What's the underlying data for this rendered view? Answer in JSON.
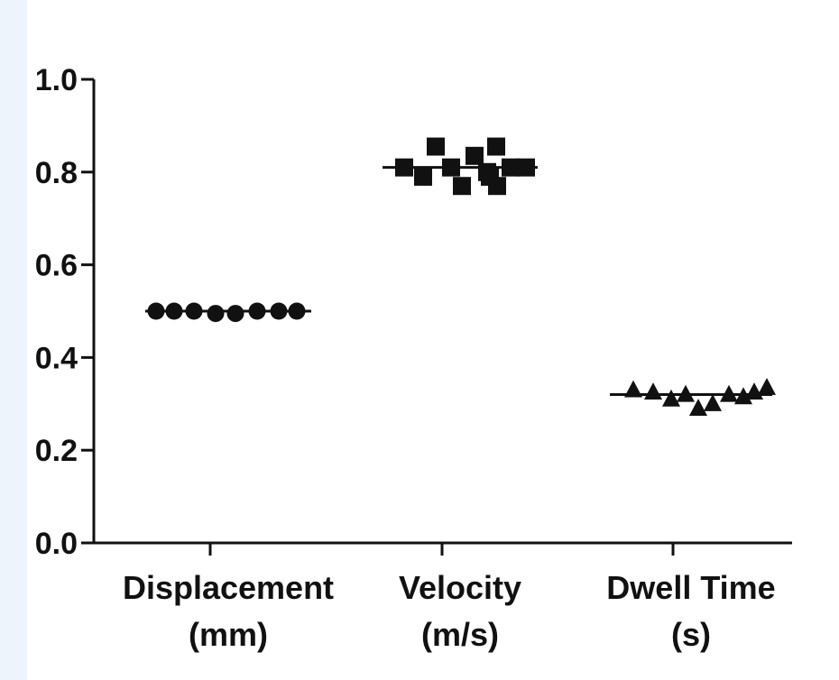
{
  "chart_data": {
    "type": "scatter",
    "title": "",
    "xlabel": "",
    "ylabel": "",
    "ylim": [
      0,
      1.0
    ],
    "yticks": [
      "0.0",
      "0.2",
      "0.4",
      "0.6",
      "0.8",
      "1.0"
    ],
    "grid": false,
    "categories": [
      {
        "line1": "Displacement",
        "line2": "(mm)"
      },
      {
        "line1": "Velocity",
        "line2": "(m/s)"
      },
      {
        "line1": "Dwell Time",
        "line2": "(s)"
      }
    ],
    "series": [
      {
        "name": "Displacement (mm)",
        "marker": "circle",
        "mean": 0.5,
        "values": [
          0.5,
          0.5,
          0.5,
          0.495,
          0.495,
          0.5,
          0.5,
          0.5
        ]
      },
      {
        "name": "Velocity (m/s)",
        "marker": "square",
        "mean": 0.81,
        "values": [
          0.81,
          0.79,
          0.855,
          0.81,
          0.77,
          0.835,
          0.8,
          0.79,
          0.855,
          0.77,
          0.81,
          0.81
        ]
      },
      {
        "name": "Dwell Time (s)",
        "marker": "triangle",
        "mean": 0.32,
        "values": [
          0.33,
          0.325,
          0.31,
          0.32,
          0.29,
          0.3,
          0.32,
          0.315,
          0.325,
          0.335
        ]
      }
    ],
    "colors": {
      "marker": "#111111",
      "axis": "#111111",
      "strip": "#eef4fc"
    }
  }
}
